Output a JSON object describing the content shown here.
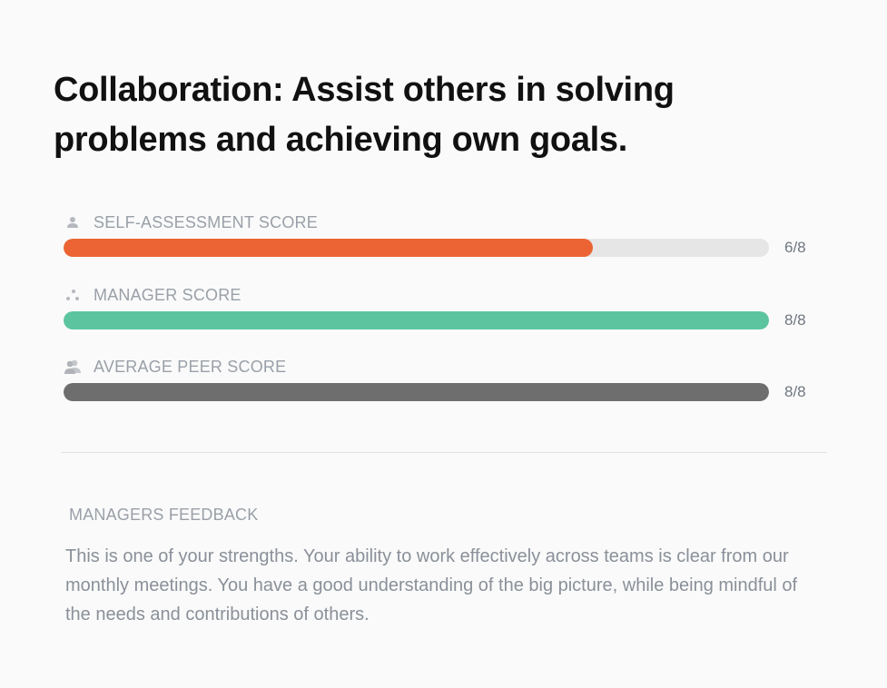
{
  "title": "Collaboration: Assist others in solving problems and achieving own goals.",
  "scores": [
    {
      "label": "SELF-ASSESSMENT SCORE",
      "value_text": "6/8",
      "value": 6,
      "max": 8,
      "color": "#ec6433",
      "icon": "person-icon"
    },
    {
      "label": "MANAGER SCORE",
      "value_text": "8/8",
      "value": 8,
      "max": 8,
      "color": "#5cc59f",
      "icon": "manager-dots-icon"
    },
    {
      "label": "AVERAGE PEER SCORE",
      "value_text": "8/8",
      "value": 8,
      "max": 8,
      "color": "#6e6e6e",
      "icon": "peers-icon"
    }
  ],
  "feedback": {
    "label": "MANAGERS FEEDBACK",
    "text": "This is one of your strengths. Your ability to work effectively across teams is clear from our monthly meetings. You have a good understanding of the big picture, while being mindful of the needs and contributions of others."
  }
}
